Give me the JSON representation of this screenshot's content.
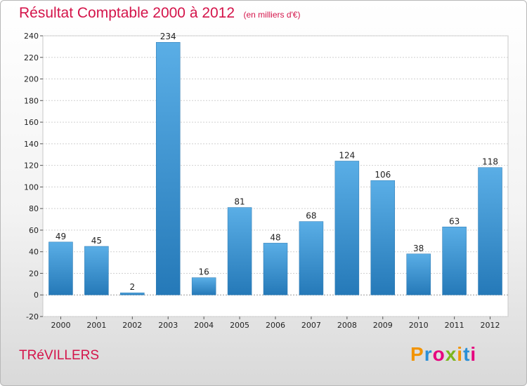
{
  "chart_data": {
    "type": "bar",
    "title": "Résultat Comptable 2000 à 2012",
    "subtitle": "(en milliers d'€)",
    "categories": [
      "2000",
      "2001",
      "2002",
      "2003",
      "2004",
      "2005",
      "2006",
      "2007",
      "2008",
      "2009",
      "2010",
      "2011",
      "2012"
    ],
    "values": [
      49,
      45,
      2,
      234,
      16,
      81,
      48,
      68,
      124,
      106,
      38,
      63,
      118
    ],
    "xlabel": "",
    "ylabel": "",
    "ylim": [
      -20,
      240
    ],
    "yticks": [
      -20,
      0,
      20,
      40,
      60,
      80,
      100,
      120,
      140,
      160,
      180,
      200,
      220,
      240
    ],
    "grid": true,
    "legend": "none"
  },
  "commune": "TRéVILLERS",
  "logo": {
    "text": "Proxiti",
    "colors": [
      "#f29400",
      "#2a8fd6",
      "#e6007e",
      "#7cb51d",
      "#f29400",
      "#2a8fd6",
      "#e6007e"
    ]
  },
  "colors": {
    "title": "#d4144a",
    "bar_light": "#5aaee6",
    "bar_dark": "#2579b8",
    "grid": "#d0d0d0"
  }
}
